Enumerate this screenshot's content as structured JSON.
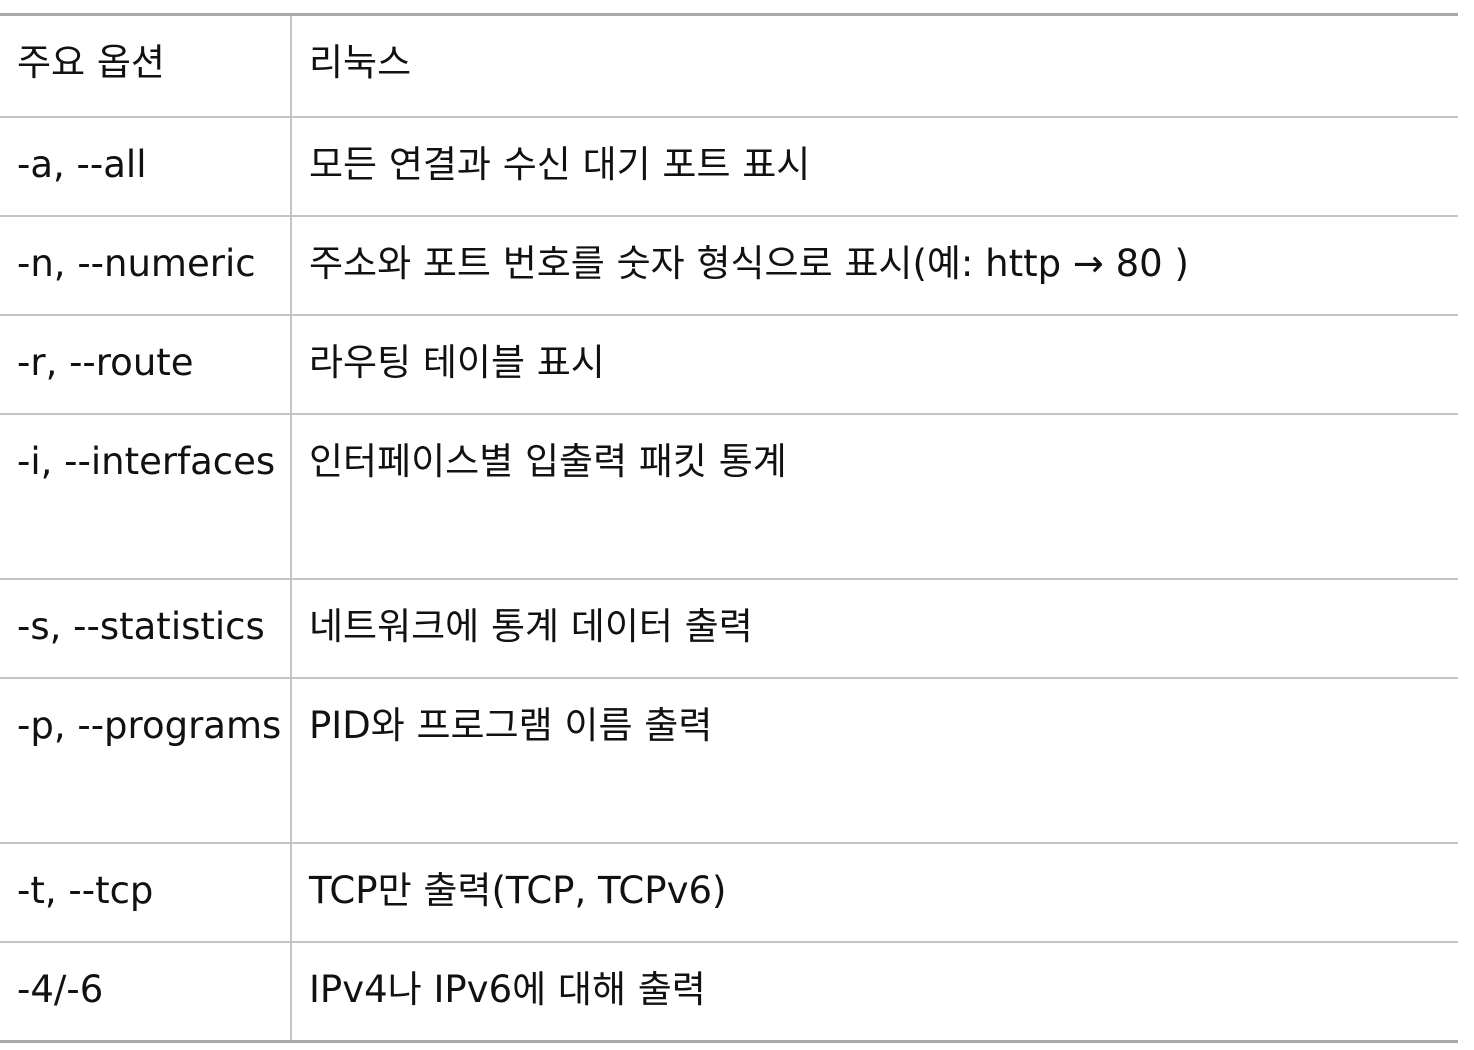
{
  "table": {
    "header": {
      "option": "주요 옵션",
      "linux": "리눅스"
    },
    "rows": [
      {
        "option": "-a, --all",
        "description": "모든 연결과 수신 대기 포트 표시"
      },
      {
        "option": "-n, --numeric",
        "description": "주소와 포트 번호를 숫자 형식으로 표시(예: http → 80 )"
      },
      {
        "option": "-r, --route",
        "description": "라우팅 테이블 표시"
      },
      {
        "option": "-i,  --interfaces",
        "description": "인터페이스별 입출력 패킷 통계"
      },
      {
        "option": "-s, --statistics",
        "description": "네트워크에 통계 데이터 출력"
      },
      {
        "option": "-p,  --programs",
        "description": "PID와 프로그램 이름 출력"
      },
      {
        "option": "-t, --tcp",
        "description": "TCP만 출력(TCP, TCPv6)"
      },
      {
        "option": "-4/-6",
        "description": "IPv4나 IPv6에 대해 출력"
      }
    ]
  }
}
